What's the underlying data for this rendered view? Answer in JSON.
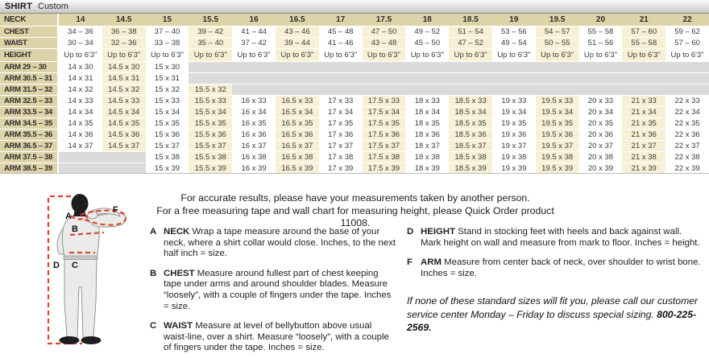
{
  "colors": {
    "tan": "#ddd3a8",
    "cream": "#f7f0d5",
    "empty_gray": "#dbdbdb",
    "accent_red": "#e0442c",
    "body_gray": "#ebebeb"
  },
  "header": {
    "title": "SHIRT",
    "subtitle": "Custom"
  },
  "size_table": {
    "corner_label": "NECK",
    "neck_sizes": [
      "14",
      "14.5",
      "15",
      "15.5",
      "16",
      "16.5",
      "17",
      "17.5",
      "18",
      "18.5",
      "19",
      "19.5",
      "20",
      "21",
      "22"
    ],
    "rows": [
      {
        "label": "CHEST",
        "values": [
          "34 – 36",
          "36 – 38",
          "37 – 40",
          "39 – 42",
          "41 – 44",
          "43 – 46",
          "45 – 48",
          "47 – 50",
          "49 – 52",
          "51 – 54",
          "53 – 56",
          "54 – 57",
          "55 – 58",
          "57 – 60",
          "59 – 62"
        ]
      },
      {
        "label": "WAIST",
        "values": [
          "30 – 34",
          "32 – 36",
          "33 – 38",
          "35 – 40",
          "37 – 42",
          "39 – 44",
          "41 – 46",
          "43 – 48",
          "45 – 50",
          "47 – 52",
          "49 – 54",
          "50 – 55",
          "51 – 56",
          "55 – 58",
          "57 – 60"
        ]
      },
      {
        "label": "HEIGHT",
        "values": [
          "Up to 6'3\"",
          "Up to 6'3\"",
          "Up to 6'3\"",
          "Up to 6'3\"",
          "Up to 6'3\"",
          "Up to 6'3\"",
          "Up to 6'3\"",
          "Up to 6'3\"",
          "Up to 6'3\"",
          "Up to 6'3\"",
          "Up to 6'3\"",
          "Up to 6'3\"",
          "Up to 6'3\"",
          "Up to 6'3\"",
          "Up to 6'3\""
        ]
      },
      {
        "label": "ARM 29 – 30",
        "values": [
          "14 x 30",
          "14.5 x 30",
          "15 x 30",
          "",
          "",
          "",
          "",
          "",
          "",
          "",
          "",
          "",
          "",
          "",
          ""
        ]
      },
      {
        "label": "ARM 30.5 – 31",
        "values": [
          "14 x 31",
          "14.5 x 31",
          "15 x 31",
          "",
          "",
          "",
          "",
          "",
          "",
          "",
          "",
          "",
          "",
          "",
          ""
        ]
      },
      {
        "label": "ARM 31.5 – 32",
        "values": [
          "14 x 32",
          "14.5 x 32",
          "15 x 32",
          "15.5 x 32",
          "",
          "",
          "",
          "",
          "",
          "",
          "",
          "",
          "",
          "",
          ""
        ]
      },
      {
        "label": "ARM 32.5 – 33",
        "values": [
          "14 x 33",
          "14.5 x 33",
          "15 x 33",
          "15.5 x 33",
          "16 x 33",
          "16.5 x 33",
          "17 x 33",
          "17.5 x 33",
          "18 x 33",
          "18.5 x 33",
          "19 x 33",
          "19.5 x 33",
          "20 x 33",
          "21 x 33",
          "22 x 33"
        ]
      },
      {
        "label": "ARM 33.5 – 34",
        "values": [
          "14 x 34",
          "14.5 x 34",
          "15 x 34",
          "15.5 x 34",
          "16 x 34",
          "16.5 x 34",
          "17 x 34",
          "17.5 x 34",
          "18 x 34",
          "18.5 x 34",
          "19 x 34",
          "19.5 x 34",
          "20 x 34",
          "21 x 34",
          "22 x 34"
        ]
      },
      {
        "label": "ARM 34.5 – 35",
        "values": [
          "14 x 35",
          "14.5 x 35",
          "15 x 35",
          "15.5 x 35",
          "16 x 35",
          "16.5 x 35",
          "17 x 35",
          "17.5 x 35",
          "18 x 35",
          "18.5 x 35",
          "19 x 35",
          "19.5 x 35",
          "20 x 35",
          "21 x 35",
          "22 x 35"
        ]
      },
      {
        "label": "ARM 35.5 – 36",
        "values": [
          "14 x 36",
          "14.5 x 36",
          "15 x 36",
          "15.5 x 36",
          "16 x 36",
          "16.5 x 36",
          "17 x 36",
          "17.5 x 36",
          "18 x 36",
          "18.5 x 36",
          "19 x 36",
          "19.5 x 36",
          "20 x 36",
          "21 x 36",
          "22 x 36"
        ]
      },
      {
        "label": "ARM 36.5 – 37",
        "values": [
          "14 x 37",
          "14.5 x 37",
          "15 x 37",
          "15.5 x 37",
          "16 x 37",
          "16.5 x 37",
          "17 x 37",
          "17.5 x 37",
          "18 x 37",
          "18.5 x 37",
          "19 x 37",
          "19.5 x 37",
          "20 x 37",
          "21 x 37",
          "22 x 37"
        ]
      },
      {
        "label": "ARM 37.5 – 38",
        "values": [
          "",
          "",
          "15 x 38",
          "15.5 x 38",
          "16 x 38",
          "16.5 x 38",
          "17 x 38",
          "17.5 x 38",
          "18 x 38",
          "18.5 x 38",
          "19 x 38",
          "19.5 x 38",
          "20 x 38",
          "21 x 38",
          "22 x 38"
        ]
      },
      {
        "label": "ARM 38.5 – 39",
        "values": [
          "",
          "",
          "15 x 39",
          "15.5 x 39",
          "16 x 39",
          "16.5 x 39",
          "17 x 39",
          "17.5 x 39",
          "18 x 39",
          "18.5 x 39",
          "19 x 39",
          "19.5 x 39",
          "20 x 39",
          "21 x 39",
          "22 x 39"
        ]
      }
    ]
  },
  "notes": {
    "line1": "For accurate results, please have your measurements taken by another person.",
    "line2": "For a free measuring tape and wall chart for measuring height, please Quick Order product 11008."
  },
  "instructions": {
    "left": [
      {
        "letter": "A",
        "term": "NECK",
        "text": "Wrap a tape measure around the base of your neck, where a shirt collar would close. Inches, to the next half inch = size."
      },
      {
        "letter": "B",
        "term": "CHEST",
        "text": "Measure around fullest part of chest keeping tape under arms and around shoulder blades. Measure “loosely”, with a couple of fingers under the tape. Inches = size."
      },
      {
        "letter": "C",
        "term": "WAIST",
        "text": "Measure at level of bellybutton above usual waist-line, over a shirt. Measure “loosely”, with a couple of fingers under the tape. Inches = size."
      }
    ],
    "right": [
      {
        "letter": "D",
        "term": "HEIGHT",
        "text": "Stand in stocking feet with heels and back against wall. Mark height on wall and measure from mark to floor. Inches = height."
      },
      {
        "letter": "F",
        "term": "ARM",
        "text": "Measure from center back of neck, over shoulder to wrist bone. Inches = size."
      }
    ]
  },
  "special_note": {
    "text": "If none of these standard sizes will fit you, please call our customer service center Monday – Friday to discuss special sizing.",
    "phone": "800-225-2569."
  },
  "figure": {
    "labels": {
      "a": "A",
      "b": "B",
      "c": "C",
      "d": "D",
      "f": "F"
    }
  }
}
